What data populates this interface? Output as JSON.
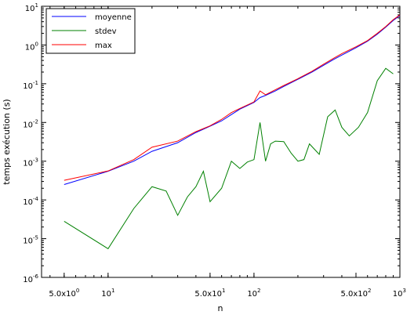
{
  "chart_data": {
    "type": "line",
    "xscale": "log",
    "yscale": "log",
    "xlabel": "n",
    "ylabel": "temps exécution (s)",
    "xlim": [
      3.5,
      1000
    ],
    "ylim": [
      1e-06,
      10
    ],
    "grid": false,
    "legend_position": "top-left",
    "x_ticks": [
      {
        "value": 5,
        "label": "5.0x10",
        "sup": "0"
      },
      {
        "value": 10,
        "label": "10",
        "sup": "1"
      },
      {
        "value": 50,
        "label": "5.0x10",
        "sup": "1"
      },
      {
        "value": 100,
        "label": "10",
        "sup": "2"
      },
      {
        "value": 500,
        "label": "5.0x10",
        "sup": "2"
      },
      {
        "value": 1000,
        "label": "10",
        "sup": "3"
      }
    ],
    "y_ticks": [
      {
        "value": 1e-06,
        "label": "10",
        "sup": "-6"
      },
      {
        "value": 1e-05,
        "label": "10",
        "sup": "-5"
      },
      {
        "value": 0.0001,
        "label": "10",
        "sup": "-4"
      },
      {
        "value": 0.001,
        "label": "10",
        "sup": "-3"
      },
      {
        "value": 0.01,
        "label": "10",
        "sup": "-2"
      },
      {
        "value": 0.1,
        "label": "10",
        "sup": "-1"
      },
      {
        "value": 1,
        "label": "10",
        "sup": "0"
      },
      {
        "value": 10,
        "label": "10",
        "sup": "1"
      }
    ],
    "series": [
      {
        "name": "moyenne",
        "color": "#0000ff",
        "points": [
          [
            5,
            0.00025
          ],
          [
            10,
            0.00055
          ],
          [
            15,
            0.001
          ],
          [
            20,
            0.0018
          ],
          [
            30,
            0.003
          ],
          [
            40,
            0.0055
          ],
          [
            50,
            0.008
          ],
          [
            60,
            0.011
          ],
          [
            70,
            0.016
          ],
          [
            80,
            0.022
          ],
          [
            100,
            0.033
          ],
          [
            110,
            0.044
          ],
          [
            120,
            0.05
          ],
          [
            140,
            0.065
          ],
          [
            160,
            0.085
          ],
          [
            200,
            0.13
          ],
          [
            250,
            0.2
          ],
          [
            300,
            0.3
          ],
          [
            350,
            0.42
          ],
          [
            400,
            0.55
          ],
          [
            500,
            0.85
          ],
          [
            600,
            1.25
          ],
          [
            700,
            1.9
          ],
          [
            800,
            2.9
          ],
          [
            900,
            4.3
          ],
          [
            1000,
            5.8
          ]
        ]
      },
      {
        "name": "stdev",
        "color": "#008000",
        "points": [
          [
            5,
            2.8e-05
          ],
          [
            10,
            5.5e-06
          ],
          [
            15,
            6e-05
          ],
          [
            20,
            0.00022
          ],
          [
            25,
            0.00017
          ],
          [
            30,
            4e-05
          ],
          [
            35,
            0.00012
          ],
          [
            40,
            0.00022
          ],
          [
            45,
            0.00055
          ],
          [
            50,
            9e-05
          ],
          [
            60,
            0.0002
          ],
          [
            70,
            0.001
          ],
          [
            80,
            0.00065
          ],
          [
            90,
            0.00095
          ],
          [
            100,
            0.0011
          ],
          [
            110,
            0.01
          ],
          [
            120,
            0.001
          ],
          [
            130,
            0.0028
          ],
          [
            140,
            0.0033
          ],
          [
            160,
            0.0032
          ],
          [
            180,
            0.0016
          ],
          [
            200,
            0.001
          ],
          [
            220,
            0.0011
          ],
          [
            240,
            0.0028
          ],
          [
            280,
            0.0015
          ],
          [
            320,
            0.014
          ],
          [
            360,
            0.021
          ],
          [
            400,
            0.0075
          ],
          [
            450,
            0.0045
          ],
          [
            520,
            0.0075
          ],
          [
            600,
            0.018
          ],
          [
            700,
            0.12
          ],
          [
            800,
            0.25
          ],
          [
            900,
            0.18
          ]
        ]
      },
      {
        "name": "max",
        "color": "#ff0000",
        "points": [
          [
            5,
            0.00032
          ],
          [
            10,
            0.00056
          ],
          [
            15,
            0.0011
          ],
          [
            20,
            0.0023
          ],
          [
            30,
            0.0033
          ],
          [
            40,
            0.0058
          ],
          [
            50,
            0.0082
          ],
          [
            60,
            0.012
          ],
          [
            70,
            0.018
          ],
          [
            80,
            0.023
          ],
          [
            100,
            0.034
          ],
          [
            110,
            0.065
          ],
          [
            120,
            0.052
          ],
          [
            140,
            0.07
          ],
          [
            160,
            0.09
          ],
          [
            200,
            0.135
          ],
          [
            250,
            0.21
          ],
          [
            300,
            0.32
          ],
          [
            350,
            0.45
          ],
          [
            400,
            0.6
          ],
          [
            500,
            0.9
          ],
          [
            600,
            1.3
          ],
          [
            700,
            2.0
          ],
          [
            800,
            3.0
          ],
          [
            900,
            4.5
          ],
          [
            1000,
            6.0
          ]
        ]
      }
    ]
  }
}
